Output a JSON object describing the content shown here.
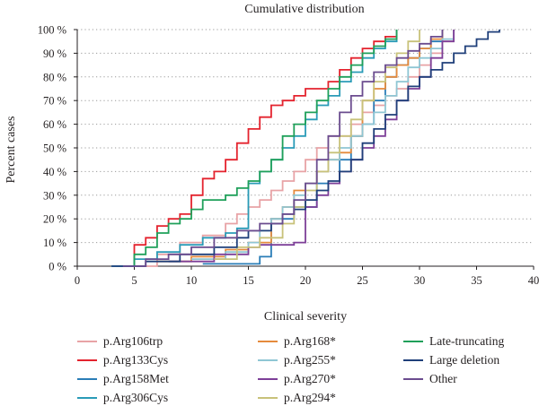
{
  "chart_data": {
    "type": "line",
    "title": "Cumulative distribution",
    "xlabel": "Clinical severity",
    "ylabel": "Percent cases",
    "xlim": [
      0,
      40
    ],
    "ylim": [
      0,
      100
    ],
    "x_ticks": [
      {
        "value": 0,
        "label": "0"
      },
      {
        "value": 5,
        "label": "5"
      },
      {
        "value": 10,
        "label": "10"
      },
      {
        "value": 15,
        "label": "15"
      },
      {
        "value": 20,
        "label": "20"
      },
      {
        "value": 25,
        "label": "25"
      },
      {
        "value": 30,
        "label": "30"
      },
      {
        "value": 35,
        "label": "35"
      },
      {
        "value": 40,
        "label": "40"
      }
    ],
    "y_ticks": [
      {
        "value": 0,
        "label": "0 %"
      },
      {
        "value": 10,
        "label": "10 %"
      },
      {
        "value": 20,
        "label": "20 %"
      },
      {
        "value": 30,
        "label": "30 %"
      },
      {
        "value": 40,
        "label": "40 %"
      },
      {
        "value": 50,
        "label": "50 %"
      },
      {
        "value": 60,
        "label": "60 %"
      },
      {
        "value": 70,
        "label": "70 %"
      },
      {
        "value": 80,
        "label": "80 %"
      },
      {
        "value": 90,
        "label": "90 %"
      },
      {
        "value": 100,
        "label": "100 %"
      }
    ],
    "grid": "horizontal dotted",
    "legend_placement": "bottom",
    "series": [
      {
        "name": "p.Arg106trp",
        "color": "#e8a3a6",
        "line": "step",
        "points": [
          [
            5,
            0
          ],
          [
            7,
            5
          ],
          [
            9,
            10
          ],
          [
            11,
            13
          ],
          [
            13,
            18
          ],
          [
            14,
            22
          ],
          [
            15,
            25
          ],
          [
            16,
            28
          ],
          [
            17,
            32
          ],
          [
            18,
            36
          ],
          [
            19,
            40
          ],
          [
            20,
            45
          ],
          [
            21,
            50
          ],
          [
            22,
            55
          ],
          [
            24,
            60
          ],
          [
            25,
            65
          ],
          [
            26,
            68
          ],
          [
            27,
            72
          ],
          [
            28,
            75
          ],
          [
            29,
            80
          ],
          [
            30,
            85
          ],
          [
            31,
            90
          ],
          [
            32,
            95
          ],
          [
            33,
            100
          ]
        ]
      },
      {
        "name": "p.Arg133Cys",
        "color": "#e4232e",
        "line": "step",
        "points": [
          [
            5,
            0
          ],
          [
            5,
            9
          ],
          [
            6,
            12
          ],
          [
            7,
            17
          ],
          [
            8,
            20
          ],
          [
            9,
            22
          ],
          [
            10,
            30
          ],
          [
            11,
            37
          ],
          [
            12,
            40
          ],
          [
            13,
            45
          ],
          [
            14,
            52
          ],
          [
            15,
            58
          ],
          [
            16,
            63
          ],
          [
            17,
            68
          ],
          [
            18,
            70
          ],
          [
            19,
            72
          ],
          [
            20,
            75
          ],
          [
            22,
            78
          ],
          [
            23,
            83
          ],
          [
            24,
            88
          ],
          [
            25,
            92
          ],
          [
            26,
            95
          ],
          [
            27,
            97
          ],
          [
            28,
            100
          ]
        ]
      },
      {
        "name": "p.Arg158Met",
        "color": "#2a7db7",
        "line": "step",
        "points": [
          [
            11,
            1
          ],
          [
            16,
            4
          ],
          [
            17,
            20
          ],
          [
            19,
            25
          ],
          [
            21,
            35
          ],
          [
            23,
            45
          ],
          [
            24,
            55
          ],
          [
            25,
            60
          ],
          [
            26,
            70
          ],
          [
            27,
            80
          ],
          [
            28,
            85
          ],
          [
            29,
            88
          ],
          [
            30,
            92
          ],
          [
            31,
            95
          ],
          [
            32,
            100
          ]
        ]
      },
      {
        "name": "p.Arg306Cys",
        "color": "#2a9bb7",
        "line": "step",
        "points": [
          [
            3,
            0
          ],
          [
            5,
            3
          ],
          [
            7,
            6
          ],
          [
            9,
            9
          ],
          [
            11,
            12
          ],
          [
            13,
            14
          ],
          [
            14,
            16
          ],
          [
            15,
            20
          ],
          [
            15,
            35
          ],
          [
            16,
            40
          ],
          [
            17,
            45
          ],
          [
            18,
            50
          ],
          [
            19,
            55
          ],
          [
            20,
            62
          ],
          [
            21,
            68
          ],
          [
            22,
            72
          ],
          [
            23,
            78
          ],
          [
            24,
            82
          ],
          [
            25,
            88
          ],
          [
            26,
            92
          ],
          [
            27,
            95
          ],
          [
            28,
            100
          ]
        ]
      },
      {
        "name": "p.Arg168*",
        "color": "#e58a3c",
        "line": "step",
        "points": [
          [
            7,
            2
          ],
          [
            10,
            4
          ],
          [
            13,
            7
          ],
          [
            15,
            10
          ],
          [
            17,
            20
          ],
          [
            18,
            25
          ],
          [
            19,
            32
          ],
          [
            20,
            35
          ],
          [
            21,
            40
          ],
          [
            22,
            45
          ],
          [
            23,
            48
          ],
          [
            24,
            55
          ],
          [
            25,
            70
          ],
          [
            26,
            75
          ],
          [
            27,
            80
          ],
          [
            28,
            85
          ],
          [
            29,
            88
          ],
          [
            30,
            92
          ],
          [
            31,
            96
          ],
          [
            32,
            100
          ]
        ]
      },
      {
        "name": "p.Arg255*",
        "color": "#8fc6d4",
        "line": "step",
        "points": [
          [
            10,
            3
          ],
          [
            13,
            6
          ],
          [
            15,
            10
          ],
          [
            16,
            15
          ],
          [
            17,
            20
          ],
          [
            18,
            25
          ],
          [
            19,
            30
          ],
          [
            20,
            35
          ],
          [
            21,
            40
          ],
          [
            22,
            45
          ],
          [
            23,
            50
          ],
          [
            24,
            55
          ],
          [
            25,
            60
          ],
          [
            26,
            65
          ],
          [
            27,
            72
          ],
          [
            28,
            78
          ],
          [
            29,
            84
          ],
          [
            30,
            88
          ],
          [
            31,
            92
          ],
          [
            32,
            96
          ],
          [
            33,
            100
          ]
        ]
      },
      {
        "name": "p.Arg270*",
        "color": "#7d3f98",
        "line": "step",
        "points": [
          [
            8,
            2
          ],
          [
            12,
            5
          ],
          [
            15,
            8
          ],
          [
            16,
            9
          ],
          [
            18,
            9
          ],
          [
            19,
            10
          ],
          [
            20,
            25
          ],
          [
            21,
            30
          ],
          [
            22,
            35
          ],
          [
            23,
            40
          ],
          [
            24,
            45
          ],
          [
            25,
            50
          ],
          [
            26,
            55
          ],
          [
            27,
            62
          ],
          [
            28,
            70
          ],
          [
            29,
            75
          ],
          [
            30,
            80
          ],
          [
            31,
            88
          ],
          [
            32,
            95
          ],
          [
            33,
            100
          ]
        ]
      },
      {
        "name": "p.Arg294*",
        "color": "#c8c27a",
        "line": "step",
        "points": [
          [
            12,
            3
          ],
          [
            14,
            8
          ],
          [
            16,
            12
          ],
          [
            18,
            18
          ],
          [
            19,
            25
          ],
          [
            20,
            32
          ],
          [
            21,
            40
          ],
          [
            22,
            48
          ],
          [
            23,
            55
          ],
          [
            24,
            62
          ],
          [
            25,
            70
          ],
          [
            26,
            78
          ],
          [
            27,
            84
          ],
          [
            28,
            90
          ],
          [
            29,
            95
          ],
          [
            30,
            100
          ]
        ]
      },
      {
        "name": "Late-truncating",
        "color": "#1fa05a",
        "line": "step",
        "points": [
          [
            5,
            0
          ],
          [
            5,
            5
          ],
          [
            6,
            8
          ],
          [
            7,
            14
          ],
          [
            8,
            18
          ],
          [
            9,
            20
          ],
          [
            10,
            24
          ],
          [
            11,
            28
          ],
          [
            13,
            30
          ],
          [
            14,
            33
          ],
          [
            15,
            36
          ],
          [
            16,
            40
          ],
          [
            17,
            45
          ],
          [
            18,
            55
          ],
          [
            19,
            60
          ],
          [
            20,
            65
          ],
          [
            21,
            70
          ],
          [
            22,
            75
          ],
          [
            23,
            80
          ],
          [
            24,
            85
          ],
          [
            25,
            90
          ],
          [
            26,
            93
          ],
          [
            27,
            96
          ],
          [
            28,
            100
          ]
        ]
      },
      {
        "name": "Large deletion",
        "color": "#1f3f7a",
        "line": "step",
        "points": [
          [
            3,
            0
          ],
          [
            6,
            2
          ],
          [
            9,
            5
          ],
          [
            12,
            8
          ],
          [
            14,
            12
          ],
          [
            15,
            15
          ],
          [
            17,
            18
          ],
          [
            18,
            22
          ],
          [
            19,
            24
          ],
          [
            20,
            28
          ],
          [
            21,
            32
          ],
          [
            22,
            36
          ],
          [
            23,
            40
          ],
          [
            24,
            45
          ],
          [
            25,
            52
          ],
          [
            26,
            58
          ],
          [
            27,
            64
          ],
          [
            28,
            70
          ],
          [
            29,
            76
          ],
          [
            30,
            80
          ],
          [
            31,
            83
          ],
          [
            32,
            86
          ],
          [
            33,
            90
          ],
          [
            34,
            93
          ],
          [
            35,
            96
          ],
          [
            36,
            99
          ],
          [
            37,
            100
          ]
        ]
      },
      {
        "name": "Other",
        "color": "#6b4c8f",
        "line": "step",
        "points": [
          [
            4,
            0
          ],
          [
            6,
            3
          ],
          [
            8,
            5
          ],
          [
            10,
            8
          ],
          [
            12,
            12
          ],
          [
            14,
            15
          ],
          [
            16,
            18
          ],
          [
            18,
            22
          ],
          [
            19,
            28
          ],
          [
            20,
            35
          ],
          [
            21,
            45
          ],
          [
            22,
            55
          ],
          [
            23,
            65
          ],
          [
            24,
            72
          ],
          [
            25,
            78
          ],
          [
            26,
            82
          ],
          [
            27,
            85
          ],
          [
            28,
            88
          ],
          [
            29,
            91
          ],
          [
            30,
            94
          ],
          [
            31,
            97
          ],
          [
            32,
            100
          ]
        ]
      }
    ]
  }
}
